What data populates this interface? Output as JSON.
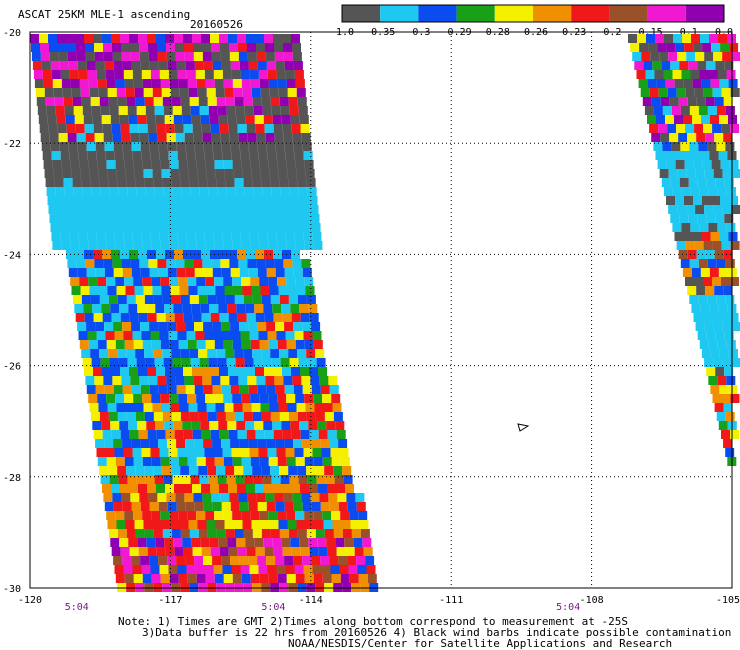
{
  "header": {
    "title": "ASCAT 25KM MLE-1 ascending",
    "date": "20160526"
  },
  "colorbar": {
    "colors": [
      "#555555",
      "#1ec8f0",
      "#0a4cf0",
      "#18a018",
      "#f5f000",
      "#f09000",
      "#f01818",
      "#9a5028",
      "#f018d0",
      "#9000b0"
    ],
    "labels": [
      "-1.0",
      "-0.35",
      "-0.3",
      "-0.29",
      "-0.28",
      "-0.26",
      "-0.23",
      "-0.2",
      "-0.15",
      "-0.1",
      "0.0"
    ]
  },
  "map": {
    "lon_ticks": [
      "-120",
      "-117",
      "-114",
      "-111",
      "-108",
      "-105"
    ],
    "lat_ticks": [
      "-20",
      "-22",
      "-24",
      "-26",
      "-28",
      "-30"
    ],
    "time_labels": [
      "5:04",
      "5:04",
      "5:04"
    ]
  },
  "footer": {
    "note_line1": "Note: 1) Times are GMT 2)Times along bottom correspond to measurement at -25S",
    "note_line2": "3)Data buffer is 22 hrs from 20160526 4) Black wind barbs indicate possible contamination",
    "credit": "NOAA/NESDIS/Center for Satellite Applications and Research"
  }
}
